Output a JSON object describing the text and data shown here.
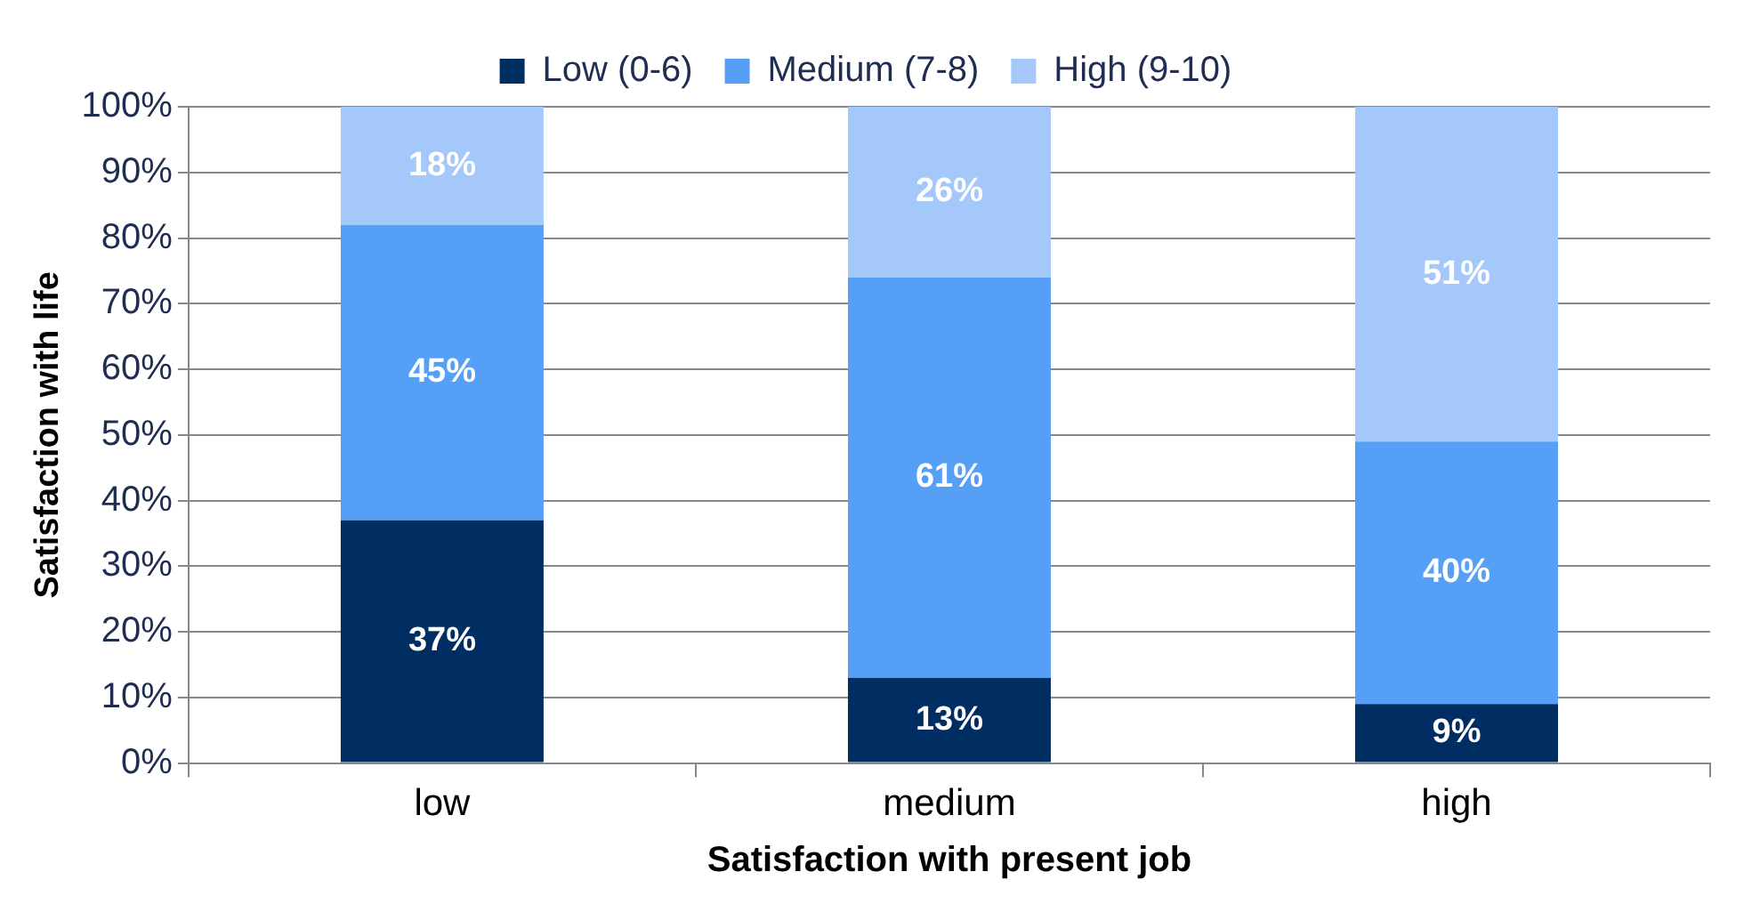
{
  "chart_data": {
    "type": "bar",
    "xlabel": "Satisfaction with present job",
    "ylabel": "Satisfaction with life",
    "categories": [
      "low",
      "medium",
      "high"
    ],
    "series": [
      {
        "name": "Low (0-6)",
        "color": "#002d62",
        "values": [
          37,
          13,
          9
        ],
        "value_labels": [
          "37%",
          "13%",
          "9%"
        ]
      },
      {
        "name": "Medium (7-8)",
        "color": "#559ff7",
        "values": [
          45,
          61,
          40
        ],
        "value_labels": [
          "45%",
          "61%",
          "40%"
        ]
      },
      {
        "name": "High (9-10)",
        "color": "#a5c8fa",
        "values": [
          18,
          26,
          51
        ],
        "value_labels": [
          "18%",
          "26%",
          "51%"
        ]
      }
    ],
    "stacked": true,
    "ylim": [
      0,
      100
    ],
    "yticks": [
      {
        "value": 0,
        "label": "0%"
      },
      {
        "value": 10,
        "label": "10%"
      },
      {
        "value": 20,
        "label": "20%"
      },
      {
        "value": 30,
        "label": "30%"
      },
      {
        "value": 40,
        "label": "40%"
      },
      {
        "value": 50,
        "label": "50%"
      },
      {
        "value": 60,
        "label": "60%"
      },
      {
        "value": 70,
        "label": "70%"
      },
      {
        "value": 80,
        "label": "80%"
      },
      {
        "value": 90,
        "label": "90%"
      },
      {
        "value": 100,
        "label": "100%"
      }
    ],
    "grid": "y",
    "legend": "top"
  }
}
